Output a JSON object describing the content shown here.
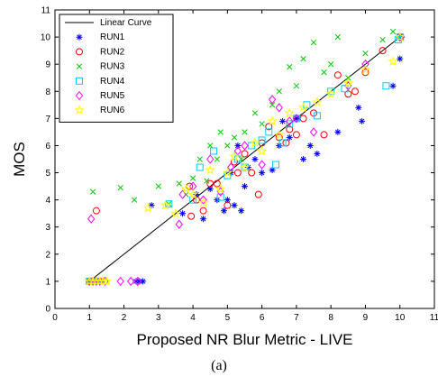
{
  "chart_data": {
    "type": "scatter",
    "xlabel": "Proposed NR Blur Metric - LIVE",
    "ylabel": "MOS",
    "caption": "(a)",
    "xlim": [
      0,
      11
    ],
    "ylim": [
      0,
      11
    ],
    "x_ticks": [
      "0",
      "1",
      "2",
      "3",
      "4",
      "5",
      "6",
      "7",
      "8",
      "9",
      "10",
      "11"
    ],
    "y_ticks": [
      "0",
      "1",
      "2",
      "3",
      "4",
      "5",
      "6",
      "7",
      "8",
      "9",
      "10",
      "11"
    ],
    "grid": false,
    "legend_position": "top-left",
    "line": {
      "name": "Linear Curve",
      "color": "#000000",
      "x": [
        1,
        10
      ],
      "y": [
        1,
        10
      ]
    },
    "series": [
      {
        "name": "RUN1",
        "marker": "asterisk",
        "color": "#0000ff",
        "x": [
          1.0,
          1.05,
          1.1,
          1.15,
          1.2,
          1.25,
          2.35,
          2.45,
          2.55,
          2.8,
          3.7,
          4.1,
          4.3,
          4.5,
          4.7,
          4.9,
          5.0,
          5.1,
          5.2,
          5.3,
          5.4,
          5.5,
          5.6,
          5.8,
          6.0,
          6.3,
          6.5,
          6.6,
          6.8,
          7.0,
          7.2,
          7.4,
          7.6,
          8.2,
          8.8,
          8.9,
          9.8,
          10.0,
          10.05
        ],
        "y": [
          1.0,
          1.0,
          1.0,
          1.0,
          1.0,
          1.0,
          1.0,
          1.0,
          1.0,
          3.8,
          3.5,
          4.2,
          3.3,
          4.4,
          4.0,
          3.6,
          4.0,
          5.0,
          3.8,
          6.0,
          3.6,
          4.5,
          5.2,
          5.5,
          5.0,
          5.1,
          6.0,
          6.9,
          6.3,
          7.0,
          5.5,
          6.0,
          5.7,
          6.5,
          7.4,
          6.9,
          8.2,
          9.2,
          10.0
        ]
      },
      {
        "name": "RUN2",
        "marker": "circle",
        "color": "#ff0000",
        "x": [
          1.0,
          1.05,
          1.1,
          1.15,
          1.3,
          1.2,
          3.9,
          3.95,
          4.1,
          4.3,
          4.5,
          4.7,
          5.0,
          5.2,
          5.3,
          5.5,
          5.7,
          5.9,
          6.0,
          6.2,
          6.5,
          6.7,
          6.8,
          7.0,
          7.2,
          7.5,
          7.8,
          8.2,
          8.5,
          8.7,
          9.0,
          9.5,
          10.0
        ],
        "y": [
          1.0,
          1.0,
          1.0,
          1.0,
          1.0,
          3.6,
          4.5,
          3.4,
          4.0,
          3.6,
          4.6,
          4.6,
          3.8,
          5.4,
          5.0,
          5.7,
          5.0,
          4.2,
          6.1,
          6.7,
          6.3,
          6.1,
          6.6,
          6.4,
          7.0,
          7.2,
          6.4,
          8.6,
          7.9,
          8.0,
          8.7,
          9.5,
          10.0
        ]
      },
      {
        "name": "RUN3",
        "marker": "cross",
        "color": "#00cc00",
        "x": [
          1.0,
          1.1,
          1.2,
          1.3,
          1.4,
          1.1,
          1.9,
          2.3,
          3.0,
          3.3,
          3.6,
          3.8,
          4.0,
          4.2,
          4.4,
          4.5,
          4.7,
          4.8,
          5.0,
          5.2,
          5.4,
          5.5,
          5.8,
          6.0,
          6.3,
          6.5,
          6.8,
          7.0,
          7.2,
          7.5,
          7.8,
          8.0,
          8.2,
          8.5,
          9.0,
          9.5,
          9.8,
          10.0
        ],
        "y": [
          1.0,
          1.0,
          1.0,
          1.0,
          1.0,
          4.3,
          4.45,
          4.0,
          4.5,
          3.85,
          4.6,
          4.2,
          4.8,
          5.5,
          4.7,
          6.0,
          5.5,
          6.5,
          6.0,
          6.3,
          5.5,
          6.5,
          7.2,
          6.8,
          7.5,
          8.0,
          8.9,
          8.2,
          9.2,
          9.8,
          8.7,
          9.0,
          10.0,
          8.5,
          9.4,
          9.9,
          10.2,
          10.0
        ]
      },
      {
        "name": "RUN4",
        "marker": "square",
        "color": "#00ccff",
        "x": [
          1.0,
          1.05,
          1.1,
          1.15,
          1.2,
          3.3,
          4.0,
          4.2,
          4.6,
          4.8,
          5.0,
          5.3,
          5.5,
          5.7,
          6.0,
          6.2,
          6.4,
          6.6,
          6.8,
          7.0,
          7.3,
          7.6,
          8.0,
          8.4,
          9.6,
          9.95,
          10.0
        ],
        "y": [
          1.0,
          1.0,
          1.0,
          1.0,
          1.0,
          3.85,
          4.0,
          5.2,
          5.8,
          4.1,
          4.9,
          5.5,
          5.2,
          6.0,
          6.2,
          6.5,
          5.3,
          6.1,
          6.8,
          7.0,
          7.5,
          7.1,
          8.0,
          8.1,
          8.2,
          9.9,
          10.0
        ]
      },
      {
        "name": "RUN5",
        "marker": "diamond",
        "color": "#ff00ff",
        "x": [
          1.0,
          1.1,
          1.2,
          1.3,
          1.45,
          1.9,
          2.2,
          2.4,
          1.05,
          3.6,
          3.7,
          4.0,
          4.3,
          4.5,
          4.8,
          5.1,
          5.3,
          5.5,
          6.0,
          6.3,
          6.5,
          6.8,
          7.0,
          7.5,
          8.5,
          9.0,
          10.0
        ],
        "y": [
          1.0,
          1.0,
          1.0,
          1.0,
          1.0,
          1.0,
          1.0,
          1.0,
          3.3,
          3.1,
          4.2,
          4.5,
          4.0,
          5.5,
          4.3,
          5.2,
          5.8,
          6.0,
          5.3,
          7.7,
          7.4,
          6.9,
          7.0,
          6.5,
          8.2,
          9.0,
          10.0
        ]
      },
      {
        "name": "RUN6",
        "marker": "star",
        "color": "#ffff00",
        "x": [
          1.0,
          1.1,
          1.2,
          1.3,
          1.4,
          1.5,
          2.7,
          3.2,
          3.5,
          3.8,
          4.0,
          4.3,
          4.5,
          4.8,
          5.0,
          5.2,
          5.5,
          5.8,
          6.0,
          6.3,
          6.5,
          6.8,
          7.2,
          7.6,
          8.0,
          8.5,
          9.0,
          9.8,
          10.0
        ],
        "y": [
          1.0,
          1.0,
          1.0,
          1.0,
          1.0,
          1.0,
          3.7,
          3.8,
          3.5,
          4.4,
          4.2,
          3.9,
          5.1,
          4.4,
          5.0,
          5.6,
          5.2,
          6.1,
          5.8,
          6.9,
          6.4,
          7.2,
          7.4,
          7.6,
          7.9,
          8.3,
          8.8,
          9.1,
          10.0
        ]
      }
    ]
  }
}
